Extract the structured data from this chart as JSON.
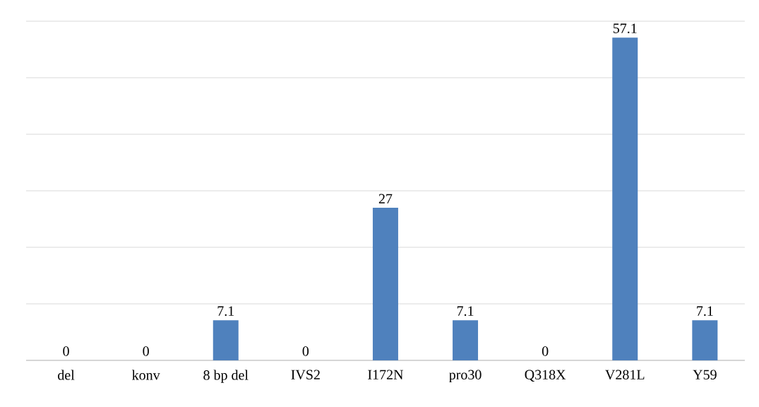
{
  "chart_data": {
    "type": "bar",
    "categories": [
      "del",
      "konv",
      "8 bp del",
      "IVS2",
      "I172N",
      "pro30",
      "Q318X",
      "V281L",
      "Y59"
    ],
    "values": [
      0,
      0,
      7.1,
      0,
      27,
      7.1,
      0,
      57.1,
      7.1
    ],
    "color": "#4f81bd",
    "ylim": [
      0,
      60
    ],
    "yticks": [
      {
        "value": 0,
        "label": null
      },
      {
        "value": 10,
        "label": null
      },
      {
        "value": 20,
        "label": null
      },
      {
        "value": 30,
        "label": null
      },
      {
        "value": 40,
        "label": null
      },
      {
        "value": 50,
        "label": null
      },
      {
        "value": 60,
        "label": null
      }
    ],
    "grid": "y",
    "tick_labels": "x",
    "data_labels": true
  }
}
